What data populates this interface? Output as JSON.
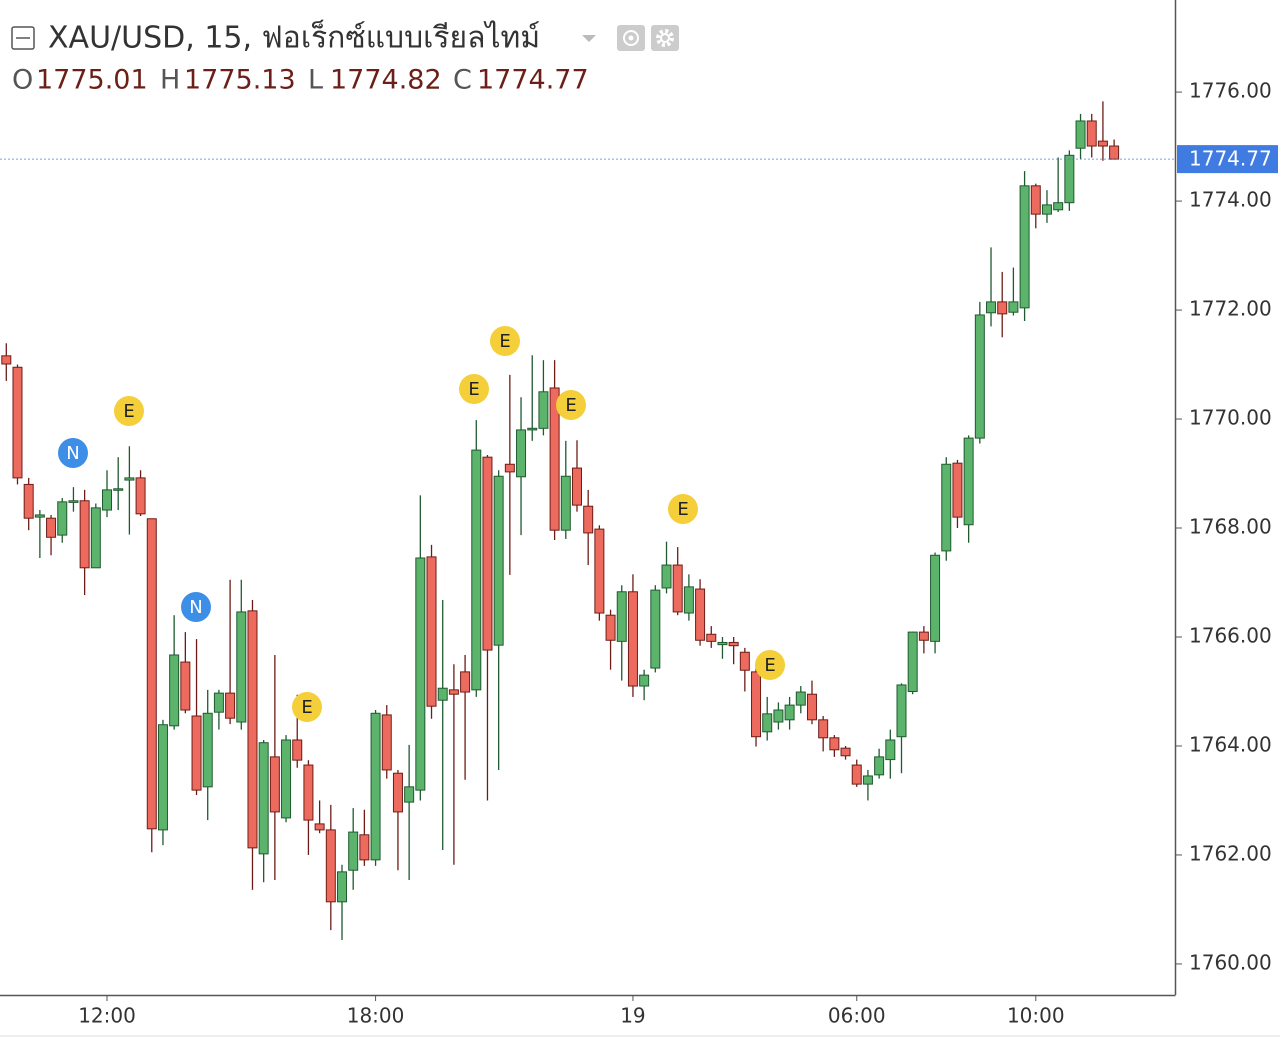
{
  "chart_data": {
    "type": "candlestick",
    "title": "XAU/USD, 15, ฟอเร็กซ์แบบเรียลไทม์",
    "ohlc": [
      {
        "label": "O",
        "value": 1775.01
      },
      {
        "label": "H",
        "value": 1775.13
      },
      {
        "label": "L",
        "value": 1774.82
      },
      {
        "label": "C",
        "value": 1774.77
      }
    ],
    "categories": [
      null,
      null,
      null,
      null,
      null,
      null,
      null,
      null,
      null,
      "12:00",
      null,
      null,
      null,
      null,
      null,
      null,
      null,
      null,
      null,
      null,
      null,
      null,
      null,
      null,
      null,
      null,
      null,
      null,
      null,
      null,
      null,
      null,
      null,
      "18:00",
      null,
      null,
      null,
      null,
      null,
      null,
      null,
      null,
      null,
      null,
      null,
      null,
      null,
      null,
      null,
      null,
      null,
      null,
      null,
      null,
      null,
      null,
      "19",
      null,
      null,
      null,
      null,
      null,
      null,
      null,
      null,
      null,
      null,
      null,
      null,
      null,
      null,
      null,
      null,
      null,
      null,
      null,
      "06:00",
      null,
      null,
      null,
      null,
      null,
      null,
      null,
      null,
      null,
      null,
      null,
      null,
      null,
      null,
      null,
      "10:00",
      null,
      null,
      null,
      null,
      null,
      null,
      null
    ],
    "open": [
      1771.16,
      1770.95,
      1768.8,
      1768.2,
      1768.18,
      1767.87,
      1768.47,
      1768.5,
      1767.27,
      1768.33,
      1768.7,
      1768.88,
      1768.92,
      1768.17,
      1762.46,
      1764.37,
      1765.54,
      1764.55,
      1763.25,
      1764.62,
      1764.97,
      1764.44,
      1766.48,
      1762.02,
      1763.8,
      1762.68,
      1764.11,
      1763.65,
      1762.57,
      1762.46,
      1761.14,
      1761.72,
      1762.37,
      1761.91,
      1764.57,
      1763.5,
      1762.97,
      1763.19,
      1767.47,
      1764.84,
      1765.03,
      1765.36,
      1765.03,
      1769.3,
      1765.85,
      1769.17,
      1768.94,
      1769.8,
      1769.83,
      1770.57,
      1767.96,
      1769.1,
      1768.4,
      1767.98,
      1766.4,
      1765.92,
      1766.83,
      1765.1,
      1765.43,
      1766.9,
      1767.32,
      1766.44,
      1766.88,
      1766.05,
      1765.86,
      1765.9,
      1765.72,
      1765.36,
      1764.26,
      1764.44,
      1764.48,
      1764.75,
      1764.95,
      1764.48,
      1764.15,
      1763.96,
      1763.65,
      1763.3,
      1763.47,
      1763.75,
      1764.17,
      1765.0,
      1766.09,
      1765.92,
      1767.58,
      1769.19,
      1768.06,
      1769.65,
      1771.95,
      1772.15,
      1771.96,
      1772.04,
      1774.28,
      1773.76,
      1773.84,
      1773.97,
      1774.97,
      1775.47,
      1775.1,
      1775.01
    ],
    "high": [
      1771.39,
      1771.0,
      1768.92,
      1768.33,
      1768.24,
      1768.55,
      1768.75,
      1768.7,
      1768.45,
      1769.06,
      1769.3,
      1769.5,
      1769.06,
      1768.17,
      1764.48,
      1766.4,
      1766.09,
      1765.96,
      1765.03,
      1765.03,
      1767.05,
      1767.05,
      1766.68,
      1764.11,
      1765.67,
      1764.2,
      1764.94,
      1763.74,
      1763.0,
      1762.92,
      1761.82,
      1762.86,
      1762.83,
      1764.66,
      1764.75,
      1763.56,
      1764.02,
      1768.6,
      1767.69,
      1766.68,
      1765.5,
      1765.67,
      1769.98,
      1769.34,
      1769.06,
      1770.81,
      1770.4,
      1771.17,
      1771.08,
      1771.08,
      1769.6,
      1769.61,
      1768.7,
      1768.05,
      1766.5,
      1766.95,
      1767.15,
      1765.4,
      1766.95,
      1767.75,
      1767.65,
      1767.15,
      1767.06,
      1766.2,
      1766.0,
      1766.0,
      1765.8,
      1765.5,
      1764.9,
      1764.8,
      1764.9,
      1765.1,
      1765.2,
      1764.55,
      1764.2,
      1764.0,
      1763.75,
      1763.56,
      1763.95,
      1764.3,
      1765.15,
      1766.1,
      1766.2,
      1767.55,
      1769.3,
      1769.25,
      1769.7,
      1772.15,
      1773.15,
      1772.7,
      1772.78,
      1774.55,
      1774.32,
      1774.2,
      1774.8,
      1774.93,
      1775.6,
      1775.6,
      1775.83,
      1775.13
    ],
    "low": [
      1770.7,
      1768.8,
      1767.96,
      1767.45,
      1767.5,
      1767.73,
      1768.3,
      1766.77,
      1767.27,
      1768.2,
      1768.33,
      1767.88,
      1768.22,
      1762.05,
      1762.18,
      1764.3,
      1764.6,
      1763.1,
      1762.64,
      1764.3,
      1764.4,
      1764.3,
      1761.36,
      1761.5,
      1761.54,
      1762.6,
      1763.6,
      1762.0,
      1762.4,
      1760.62,
      1760.44,
      1761.36,
      1761.8,
      1761.8,
      1763.4,
      1761.72,
      1761.54,
      1763.0,
      1764.5,
      1762.09,
      1761.82,
      1763.38,
      1764.9,
      1763.0,
      1763.56,
      1767.14,
      1767.87,
      1769.6,
      1769.7,
      1767.78,
      1767.8,
      1768.3,
      1767.32,
      1766.3,
      1765.4,
      1765.2,
      1764.9,
      1764.84,
      1765.35,
      1766.8,
      1766.4,
      1766.3,
      1765.84,
      1765.8,
      1765.6,
      1765.5,
      1765.0,
      1763.99,
      1764.1,
      1764.3,
      1764.3,
      1764.6,
      1764.4,
      1763.9,
      1763.8,
      1763.75,
      1763.25,
      1763.0,
      1763.4,
      1763.4,
      1763.5,
      1764.95,
      1765.7,
      1765.7,
      1767.4,
      1768.0,
      1767.73,
      1769.55,
      1771.7,
      1771.5,
      1771.9,
      1771.8,
      1773.5,
      1773.6,
      1773.8,
      1773.82,
      1774.77,
      1774.8,
      1774.74,
      1774.82
    ],
    "close": [
      1771.01,
      1768.92,
      1768.18,
      1768.24,
      1767.83,
      1768.48,
      1768.5,
      1767.27,
      1768.37,
      1768.7,
      1768.72,
      1768.92,
      1768.26,
      1762.48,
      1764.39,
      1765.67,
      1764.66,
      1763.19,
      1764.6,
      1764.97,
      1764.51,
      1766.46,
      1762.13,
      1764.06,
      1762.79,
      1764.11,
      1763.74,
      1762.64,
      1762.46,
      1761.14,
      1761.69,
      1762.42,
      1761.91,
      1764.6,
      1763.56,
      1762.79,
      1763.25,
      1767.45,
      1764.73,
      1765.06,
      1764.95,
      1764.99,
      1769.43,
      1765.76,
      1768.95,
      1769.03,
      1769.8,
      1769.83,
      1770.5,
      1767.96,
      1768.95,
      1768.42,
      1767.91,
      1766.44,
      1765.94,
      1766.83,
      1765.1,
      1765.3,
      1766.86,
      1767.32,
      1766.46,
      1766.92,
      1765.94,
      1765.92,
      1765.9,
      1765.84,
      1765.39,
      1764.17,
      1764.59,
      1764.66,
      1764.75,
      1764.99,
      1764.48,
      1764.15,
      1763.93,
      1763.82,
      1763.3,
      1763.45,
      1763.8,
      1764.11,
      1765.12,
      1766.09,
      1765.94,
      1767.5,
      1769.17,
      1768.2,
      1769.65,
      1771.91,
      1772.15,
      1771.93,
      1772.15,
      1774.28,
      1773.76,
      1773.93,
      1773.97,
      1774.84,
      1775.47,
      1775.01,
      1775.01,
      1774.77
    ],
    "up_color": "#5cb46c",
    "up_border": "#1f5a30",
    "down_color": "#ec6b5e",
    "down_border": "#6e1d16",
    "price_line_color": "#3f7be0",
    "events": [
      "N",
      "E",
      "N",
      "E",
      "E",
      "E",
      "E",
      "E",
      "E"
    ],
    "ylim": [
      1759.43,
      1777.69
    ],
    "yticks": [
      {
        "value": 1760,
        "label": "1760.00"
      },
      {
        "value": 1762,
        "label": "1762.00"
      },
      {
        "value": 1764,
        "label": "1764.00"
      },
      {
        "value": 1766,
        "label": "1766.00"
      },
      {
        "value": 1768,
        "label": "1768.00"
      },
      {
        "value": 1770,
        "label": "1770.00"
      },
      {
        "value": 1772,
        "label": "1772.00"
      },
      {
        "value": 1774,
        "label": "1774.00"
      },
      {
        "value": 1776,
        "label": "1776.00"
      }
    ],
    "grid": false
  }
}
